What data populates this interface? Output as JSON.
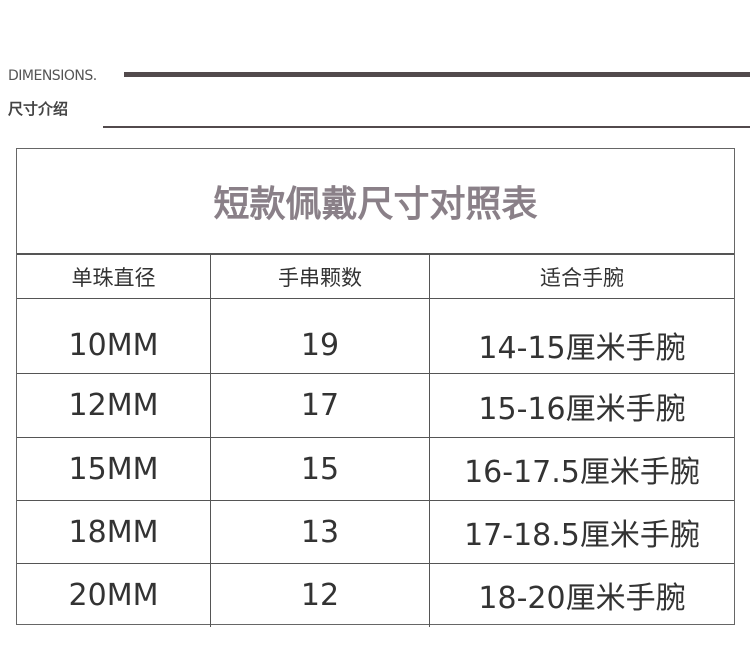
{
  "header": {
    "en": "DIMENSIONS.",
    "cn": "尺寸介绍"
  },
  "table": {
    "title": "短款佩戴尺寸对照表",
    "columns": [
      "单珠直径",
      "手串颗数",
      "适合手腕"
    ],
    "rows": [
      [
        "10MM",
        "19",
        "14-15厘米手腕"
      ],
      [
        "12MM",
        "17",
        "15-16厘米手腕"
      ],
      [
        "15MM",
        "15",
        "16-17.5厘米手腕"
      ],
      [
        "18MM",
        "13",
        "17-18.5厘米手腕"
      ],
      [
        "20MM",
        "12",
        "18-20厘米手腕"
      ]
    ]
  },
  "colors": {
    "title": "#8a8088",
    "rule": "#524a4c"
  }
}
